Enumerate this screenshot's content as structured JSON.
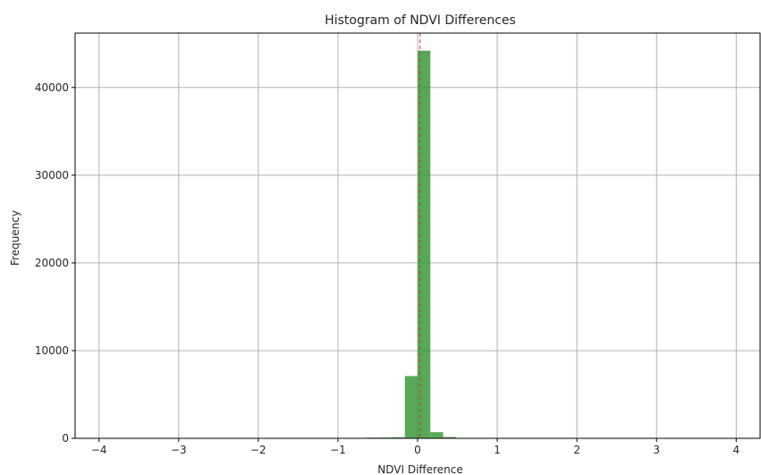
{
  "chart_data": {
    "type": "bar",
    "title": "Histogram of NDVI Differences",
    "xlabel": "NDVI Difference",
    "ylabel": "Frequency",
    "xlim": [
      -4.3,
      4.3
    ],
    "ylim": [
      0,
      46200
    ],
    "x_ticks": [
      -4,
      -3,
      -2,
      -1,
      0,
      1,
      2,
      3,
      4
    ],
    "x_tick_labels": [
      "−4",
      "−3",
      "−2",
      "−1",
      "0",
      "1",
      "2",
      "3",
      "4"
    ],
    "y_ticks": [
      0,
      10000,
      20000,
      30000,
      40000
    ],
    "y_tick_labels": [
      "0",
      "10000",
      "20000",
      "30000",
      "40000"
    ],
    "grid": true,
    "bar_color": "#3a9a3a",
    "mean_line": {
      "x": 0.03,
      "color": "#e03030",
      "style": "dashed"
    },
    "bins": [
      {
        "x0": -0.64,
        "x1": -0.48,
        "count": 80
      },
      {
        "x0": -0.48,
        "x1": -0.32,
        "count": 90
      },
      {
        "x0": -0.32,
        "x1": -0.16,
        "count": 120
      },
      {
        "x0": -0.16,
        "x1": 0.0,
        "count": 7100
      },
      {
        "x0": 0.0,
        "x1": 0.16,
        "count": 44200
      },
      {
        "x0": 0.16,
        "x1": 0.32,
        "count": 700
      },
      {
        "x0": 0.32,
        "x1": 0.48,
        "count": 150
      }
    ]
  }
}
